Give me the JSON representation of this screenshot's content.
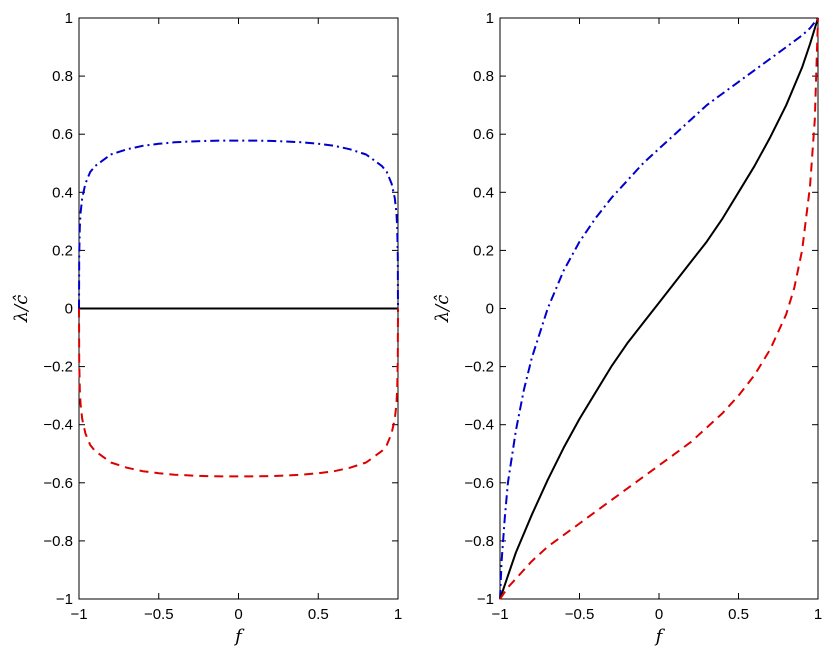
{
  "chart_data": [
    {
      "type": "line",
      "xlabel": "f",
      "ylabel": "λ/ĉ",
      "xlim": [
        -1,
        1
      ],
      "ylim": [
        -1,
        1
      ],
      "xticks": [
        "−1",
        "−0.5",
        "0",
        "0.5",
        "1"
      ],
      "yticks": [
        "−1",
        "−0.8",
        "−0.6",
        "−0.4",
        "−0.2",
        "0",
        "0.2",
        "0.4",
        "0.6",
        "0.8",
        "1"
      ],
      "grid": false,
      "legend": "none",
      "series": [
        {
          "color": "#0000cc",
          "style": "dashdot",
          "x": [
            -1,
            -0.999,
            -0.995,
            -0.99,
            -0.98,
            -0.96,
            -0.93,
            -0.9,
            -0.85,
            -0.8,
            -0.7,
            -0.6,
            -0.5,
            -0.4,
            -0.3,
            -0.2,
            -0.1,
            0,
            0.1,
            0.2,
            0.3,
            0.4,
            0.5,
            0.6,
            0.7,
            0.8,
            0.85,
            0.9,
            0.93,
            0.96,
            0.98,
            0.99,
            0.995,
            0.999,
            1
          ],
          "y": [
            0,
            0.18,
            0.28,
            0.33,
            0.38,
            0.43,
            0.47,
            0.49,
            0.51,
            0.53,
            0.548,
            0.56,
            0.567,
            0.572,
            0.575,
            0.577,
            0.578,
            0.578,
            0.578,
            0.577,
            0.575,
            0.572,
            0.567,
            0.56,
            0.548,
            0.53,
            0.51,
            0.49,
            0.47,
            0.43,
            0.38,
            0.33,
            0.28,
            0.18,
            0
          ]
        },
        {
          "color": "#000000",
          "style": "solid",
          "x": [
            -1,
            1
          ],
          "y": [
            0,
            0
          ]
        },
        {
          "color": "#dd0000",
          "style": "dashed",
          "x": [
            -1,
            -0.999,
            -0.995,
            -0.99,
            -0.98,
            -0.96,
            -0.93,
            -0.9,
            -0.85,
            -0.8,
            -0.7,
            -0.6,
            -0.5,
            -0.4,
            -0.3,
            -0.2,
            -0.1,
            0,
            0.1,
            0.2,
            0.3,
            0.4,
            0.5,
            0.6,
            0.7,
            0.8,
            0.85,
            0.9,
            0.93,
            0.96,
            0.98,
            0.99,
            0.995,
            0.999,
            1
          ],
          "y": [
            0,
            -0.18,
            -0.28,
            -0.33,
            -0.38,
            -0.43,
            -0.47,
            -0.49,
            -0.51,
            -0.53,
            -0.548,
            -0.56,
            -0.567,
            -0.572,
            -0.575,
            -0.577,
            -0.578,
            -0.578,
            -0.578,
            -0.577,
            -0.575,
            -0.572,
            -0.567,
            -0.56,
            -0.548,
            -0.53,
            -0.51,
            -0.49,
            -0.47,
            -0.43,
            -0.38,
            -0.33,
            -0.28,
            -0.18,
            0
          ]
        }
      ]
    },
    {
      "type": "line",
      "xlabel": "f",
      "ylabel": "λ/ĉ",
      "xlim": [
        -1,
        1
      ],
      "ylim": [
        -1,
        1
      ],
      "xticks": [
        "−1",
        "−0.5",
        "0",
        "0.5",
        "1"
      ],
      "yticks": [
        "−1",
        "−0.8",
        "−0.6",
        "−0.4",
        "−0.2",
        "0",
        "0.2",
        "0.4",
        "0.6",
        "0.8",
        "1"
      ],
      "grid": false,
      "legend": "none",
      "series": [
        {
          "color": "#0000cc",
          "style": "dashdot",
          "x": [
            -1,
            -0.99,
            -0.97,
            -0.95,
            -0.9,
            -0.85,
            -0.8,
            -0.7,
            -0.6,
            -0.5,
            -0.4,
            -0.3,
            -0.2,
            -0.1,
            0,
            0.1,
            0.2,
            0.3,
            0.4,
            0.5,
            0.6,
            0.7,
            0.8,
            0.9,
            0.95,
            1
          ],
          "y": [
            -1,
            -0.87,
            -0.72,
            -0.6,
            -0.42,
            -0.28,
            -0.17,
            0.0,
            0.13,
            0.23,
            0.31,
            0.38,
            0.44,
            0.5,
            0.55,
            0.6,
            0.65,
            0.7,
            0.74,
            0.78,
            0.82,
            0.86,
            0.9,
            0.94,
            0.965,
            1
          ]
        },
        {
          "color": "#000000",
          "style": "solid",
          "x": [
            -1,
            -0.95,
            -0.9,
            -0.8,
            -0.7,
            -0.6,
            -0.5,
            -0.4,
            -0.3,
            -0.2,
            -0.1,
            0,
            0.1,
            0.2,
            0.3,
            0.4,
            0.5,
            0.6,
            0.7,
            0.8,
            0.9,
            0.95,
            1
          ],
          "y": [
            -1,
            -0.92,
            -0.84,
            -0.71,
            -0.59,
            -0.48,
            -0.38,
            -0.29,
            -0.2,
            -0.12,
            -0.05,
            0.02,
            0.09,
            0.16,
            0.23,
            0.31,
            0.4,
            0.49,
            0.59,
            0.7,
            0.83,
            0.91,
            1
          ]
        },
        {
          "color": "#dd0000",
          "style": "dashed",
          "x": [
            -1,
            -0.95,
            -0.9,
            -0.8,
            -0.7,
            -0.6,
            -0.5,
            -0.4,
            -0.3,
            -0.2,
            -0.1,
            0,
            0.1,
            0.2,
            0.3,
            0.4,
            0.5,
            0.6,
            0.7,
            0.8,
            0.85,
            0.9,
            0.95,
            0.98,
            1
          ],
          "y": [
            -1,
            -0.96,
            -0.93,
            -0.87,
            -0.82,
            -0.78,
            -0.74,
            -0.7,
            -0.66,
            -0.62,
            -0.58,
            -0.54,
            -0.5,
            -0.46,
            -0.41,
            -0.36,
            -0.3,
            -0.23,
            -0.14,
            -0.02,
            0.07,
            0.2,
            0.42,
            0.65,
            1
          ]
        }
      ]
    }
  ]
}
